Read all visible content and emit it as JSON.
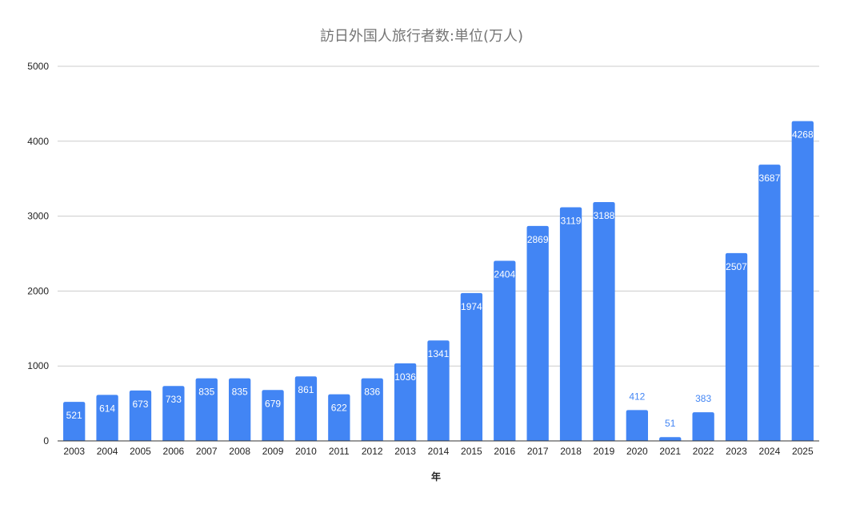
{
  "chart_data": {
    "type": "bar",
    "title": "訪日外国人旅行者数:単位(万人)",
    "xlabel": "年",
    "ylabel": "",
    "ylim": [
      0,
      5000
    ],
    "yticks": [
      0,
      1000,
      2000,
      3000,
      4000,
      5000
    ],
    "grid": true,
    "legend": "none",
    "categories": [
      "2003",
      "2004",
      "2005",
      "2006",
      "2007",
      "2008",
      "2009",
      "2010",
      "2011",
      "2012",
      "2013",
      "2014",
      "2015",
      "2016",
      "2017",
      "2018",
      "2019",
      "2020",
      "2021",
      "2022",
      "2023",
      "2024",
      "2025"
    ],
    "values": [
      521,
      614,
      673,
      733,
      835,
      835,
      679,
      861,
      622,
      836,
      1036,
      1341,
      1974,
      2404,
      2869,
      3119,
      3188,
      412,
      51,
      383,
      2507,
      3687,
      4268
    ],
    "bar_color": "#4285f4",
    "label_inside_color": "#ffffff",
    "label_outside_color": "#4285f4"
  }
}
